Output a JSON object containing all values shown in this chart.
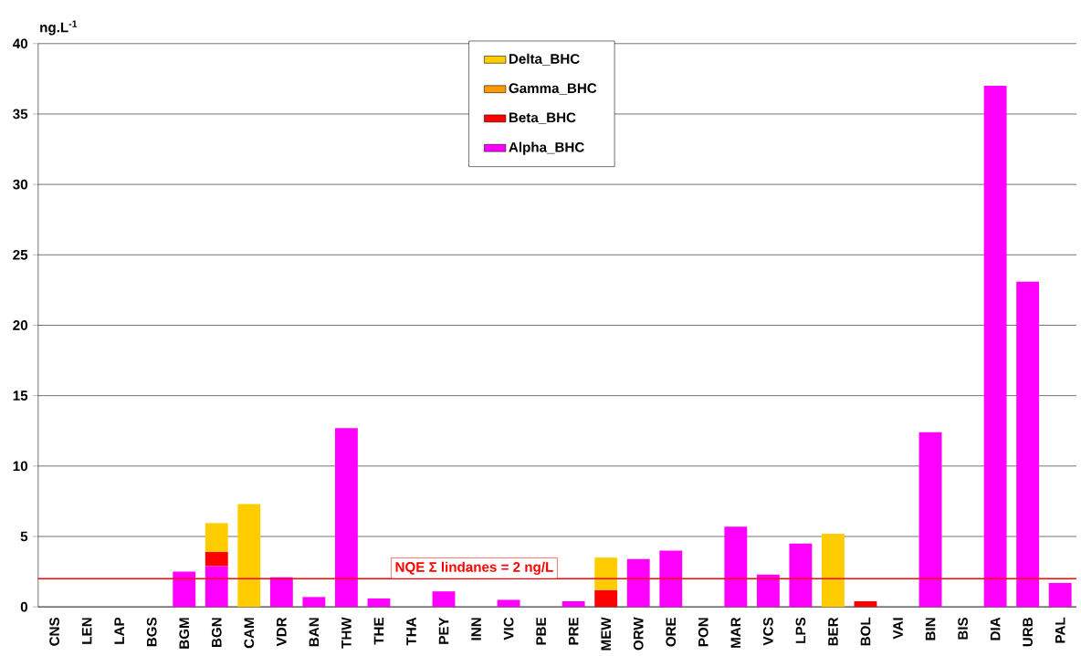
{
  "chart_data": {
    "type": "bar",
    "stacked": true,
    "ylabel": "ng.L$^{-1}$",
    "categories": [
      "CNS",
      "LEN",
      "LAP",
      "BGS",
      "BGM",
      "BGN",
      "CAM",
      "VDR",
      "BAN",
      "THW",
      "THE",
      "THA",
      "PEY",
      "INN",
      "VIC",
      "PBE",
      "PRE",
      "MEW",
      "ORW",
      "ORE",
      "PON",
      "MAR",
      "VCS",
      "LPS",
      "BER",
      "BOL",
      "VAI",
      "BIN",
      "BIS",
      "DIA",
      "URB",
      "PAL"
    ],
    "series": [
      {
        "name": "Alpha_BHC",
        "color": "#ff00ff",
        "values": [
          null,
          null,
          null,
          null,
          2.5,
          2.9,
          null,
          2.1,
          0.7,
          12.7,
          0.6,
          null,
          1.1,
          null,
          0.5,
          null,
          0.4,
          null,
          3.4,
          4.0,
          null,
          5.7,
          2.3,
          4.5,
          null,
          null,
          null,
          12.4,
          null,
          37.0,
          23.1,
          1.7
        ]
      },
      {
        "name": "Beta_BHC",
        "color": "#ff0000",
        "values": [
          null,
          null,
          null,
          null,
          null,
          1.0,
          null,
          null,
          null,
          null,
          null,
          null,
          null,
          null,
          null,
          null,
          null,
          1.2,
          null,
          null,
          null,
          null,
          null,
          null,
          null,
          0.4,
          null,
          null,
          null,
          null,
          null,
          null
        ]
      },
      {
        "name": "Gamma_BHC",
        "color": "#ff9900",
        "values": [
          null,
          null,
          null,
          null,
          null,
          null,
          null,
          null,
          null,
          null,
          null,
          null,
          null,
          null,
          null,
          null,
          null,
          null,
          null,
          null,
          null,
          null,
          null,
          null,
          null,
          null,
          null,
          null,
          null,
          null,
          null,
          null
        ]
      },
      {
        "name": "Delta_BHC",
        "color": "#ffcc00",
        "values": [
          null,
          null,
          null,
          null,
          null,
          2.05,
          7.3,
          null,
          null,
          null,
          null,
          null,
          null,
          null,
          null,
          null,
          null,
          2.3,
          null,
          null,
          null,
          null,
          null,
          null,
          5.2,
          null,
          null,
          null,
          null,
          null,
          null,
          null
        ]
      }
    ],
    "ylim": [
      0,
      40
    ],
    "yticks": [
      0,
      5,
      10,
      15,
      20,
      25,
      30,
      35,
      40
    ],
    "grid": "y",
    "legend": "top",
    "ref_lines": [
      {
        "axis": "y",
        "value": 2,
        "label": "NQE Σ lindanes = 2 ng/L",
        "color": "#ff0000"
      }
    ]
  }
}
